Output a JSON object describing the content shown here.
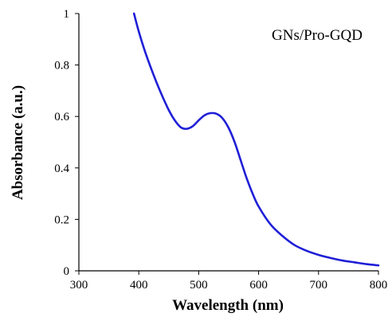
{
  "chart_data": {
    "type": "line",
    "title": "",
    "xlabel": "Wavelength (nm)",
    "ylabel": "Absorbance (a.u.)",
    "xlim": [
      300,
      800
    ],
    "ylim": [
      0,
      1
    ],
    "x_ticks": [
      "300",
      "400",
      "500",
      "600",
      "700",
      "800"
    ],
    "y_ticks": [
      "0",
      "0.2",
      "0.4",
      "0.6",
      "0.8",
      "1"
    ],
    "grid": false,
    "legend_placement": "top-right",
    "series": [
      {
        "name": "GNs/Pro-GQD",
        "color": "#1f1fd8",
        "x": [
          392,
          400,
          410,
          420,
          430,
          440,
          450,
          460,
          470,
          480,
          490,
          500,
          510,
          520,
          530,
          540,
          550,
          560,
          570,
          580,
          590,
          600,
          620,
          640,
          660,
          680,
          700,
          720,
          740,
          760,
          780,
          800
        ],
        "y": [
          1.0,
          0.93,
          0.855,
          0.79,
          0.73,
          0.675,
          0.625,
          0.585,
          0.558,
          0.552,
          0.562,
          0.585,
          0.605,
          0.613,
          0.61,
          0.592,
          0.555,
          0.5,
          0.43,
          0.36,
          0.3,
          0.25,
          0.18,
          0.135,
          0.1,
          0.078,
          0.062,
          0.05,
          0.04,
          0.033,
          0.026,
          0.021
        ]
      }
    ]
  }
}
